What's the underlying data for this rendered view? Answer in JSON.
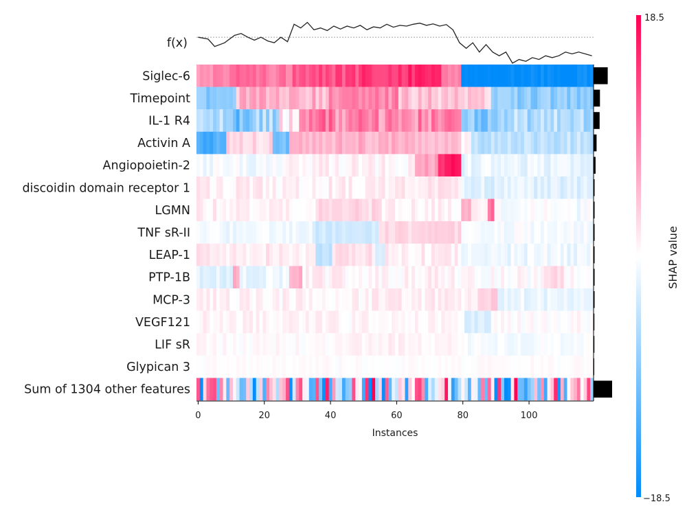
{
  "chart_data": {
    "type": "heatmap",
    "xlabel": "Instances",
    "fx_label": "f(x)",
    "n_instances": 120,
    "x_ticks": [
      0,
      20,
      40,
      60,
      80,
      100
    ],
    "features": [
      "Siglec-6",
      "Timepoint",
      "IL-1 R4",
      "Activin A",
      "Angiopoietin-2",
      "discoidin domain receptor 1",
      "LGMN",
      "TNF sR-II",
      "LEAP-1",
      "PTP-1B",
      "MCP-3",
      "VEGF121",
      "LIF sR",
      "Glypican 3",
      "Sum of 1304 other features"
    ],
    "importance": [
      4.2,
      1.9,
      1.8,
      0.9,
      0.6,
      0.3,
      0.3,
      0.3,
      0.3,
      0.3,
      0.3,
      0.25,
      0.25,
      0.2,
      5.5
    ],
    "profiles": [
      [
        [
          0,
          9,
          0.45
        ],
        [
          10,
          19,
          0.6
        ],
        [
          20,
          28,
          0.55
        ],
        [
          29,
          49,
          0.7
        ],
        [
          50,
          62,
          0.8
        ],
        [
          63,
          73,
          0.85
        ],
        [
          74,
          79,
          0.5
        ],
        [
          80,
          119,
          -1.0
        ]
      ],
      [
        [
          0,
          11,
          -0.45
        ],
        [
          12,
          39,
          0.3
        ],
        [
          40,
          60,
          0.45
        ],
        [
          61,
          79,
          0.25
        ],
        [
          80,
          88,
          0.15
        ],
        [
          89,
          119,
          -0.45
        ]
      ],
      [
        [
          0,
          8,
          -0.3
        ],
        [
          9,
          15,
          -0.55
        ],
        [
          16,
          24,
          -0.35
        ],
        [
          25,
          30,
          0.1
        ],
        [
          31,
          40,
          0.5
        ],
        [
          41,
          79,
          0.45
        ],
        [
          80,
          89,
          -0.45
        ],
        [
          90,
          119,
          -0.3
        ]
      ],
      [
        [
          0,
          8,
          -0.7
        ],
        [
          9,
          22,
          0.15
        ],
        [
          23,
          27,
          -0.55
        ],
        [
          28,
          79,
          0.3
        ],
        [
          80,
          82,
          0.0
        ],
        [
          83,
          119,
          -0.25
        ]
      ],
      [
        [
          0,
          25,
          -0.05
        ],
        [
          26,
          65,
          0.05
        ],
        [
          66,
          72,
          0.35
        ],
        [
          73,
          75,
          0.85
        ],
        [
          76,
          79,
          0.9
        ],
        [
          80,
          119,
          -0.08
        ]
      ],
      [
        [
          0,
          60,
          0.06
        ],
        [
          61,
          79,
          0.1
        ],
        [
          80,
          119,
          -0.12
        ]
      ],
      [
        [
          0,
          35,
          0.06
        ],
        [
          36,
          55,
          0.15
        ],
        [
          56,
          79,
          0.05
        ],
        [
          80,
          82,
          0.35
        ],
        [
          83,
          87,
          0.1
        ],
        [
          88,
          89,
          0.55
        ],
        [
          90,
          119,
          -0.03
        ]
      ],
      [
        [
          0,
          34,
          -0.06
        ],
        [
          35,
          54,
          -0.18
        ],
        [
          55,
          79,
          0.15
        ],
        [
          80,
          119,
          -0.03
        ]
      ],
      [
        [
          0,
          35,
          0.08
        ],
        [
          36,
          40,
          -0.25
        ],
        [
          41,
          53,
          0.12
        ],
        [
          54,
          56,
          -0.2
        ],
        [
          57,
          79,
          0.06
        ],
        [
          80,
          119,
          -0.06
        ]
      ],
      [
        [
          0,
          10,
          -0.1
        ],
        [
          11,
          12,
          0.35
        ],
        [
          13,
          27,
          -0.08
        ],
        [
          28,
          31,
          0.3
        ],
        [
          32,
          79,
          0.05
        ],
        [
          80,
          104,
          0.02
        ],
        [
          105,
          110,
          0.15
        ],
        [
          111,
          119,
          0.02
        ]
      ],
      [
        [
          0,
          50,
          0.05
        ],
        [
          51,
          84,
          0.06
        ],
        [
          85,
          90,
          0.2
        ],
        [
          91,
          119,
          -0.08
        ]
      ],
      [
        [
          0,
          80,
          0.04
        ],
        [
          81,
          88,
          -0.15
        ],
        [
          89,
          119,
          0.01
        ]
      ],
      [
        [
          0,
          40,
          0.02
        ],
        [
          41,
          79,
          0.05
        ],
        [
          80,
          119,
          -0.03
        ]
      ],
      [
        [
          0,
          119,
          0.01
        ]
      ],
      [
        [
          0,
          119,
          0.0
        ]
      ]
    ],
    "row_noise": [
      0.12,
      0.15,
      0.2,
      0.1,
      0.08,
      0.08,
      0.08,
      0.06,
      0.08,
      0.08,
      0.07,
      0.06,
      0.05,
      0.03,
      1.0
    ],
    "fx_points": [
      [
        0,
        0.7
      ],
      [
        3,
        0.65
      ],
      [
        5,
        0.45
      ],
      [
        8,
        0.55
      ],
      [
        11,
        0.75
      ],
      [
        13,
        0.8
      ],
      [
        15,
        0.7
      ],
      [
        17,
        0.62
      ],
      [
        19,
        0.7
      ],
      [
        21,
        0.6
      ],
      [
        23,
        0.55
      ],
      [
        25,
        0.7
      ],
      [
        27,
        0.58
      ],
      [
        29,
        1.05
      ],
      [
        31,
        0.95
      ],
      [
        33,
        1.1
      ],
      [
        35,
        0.9
      ],
      [
        37,
        0.95
      ],
      [
        39,
        0.88
      ],
      [
        41,
        1.0
      ],
      [
        43,
        0.92
      ],
      [
        45,
        1.0
      ],
      [
        47,
        0.95
      ],
      [
        49,
        1.02
      ],
      [
        51,
        0.9
      ],
      [
        53,
        0.98
      ],
      [
        55,
        0.95
      ],
      [
        57,
        1.05
      ],
      [
        59,
        0.97
      ],
      [
        61,
        1.02
      ],
      [
        63,
        1.0
      ],
      [
        65,
        1.05
      ],
      [
        67,
        1.08
      ],
      [
        69,
        1.02
      ],
      [
        71,
        1.06
      ],
      [
        73,
        1.0
      ],
      [
        75,
        1.04
      ],
      [
        77,
        0.9
      ],
      [
        79,
        0.55
      ],
      [
        81,
        0.4
      ],
      [
        83,
        0.55
      ],
      [
        85,
        0.3
      ],
      [
        87,
        0.5
      ],
      [
        89,
        0.3
      ],
      [
        91,
        0.2
      ],
      [
        93,
        0.3
      ],
      [
        95,
        0.0
      ],
      [
        97,
        0.1
      ],
      [
        99,
        0.05
      ],
      [
        101,
        0.15
      ],
      [
        103,
        0.1
      ],
      [
        105,
        0.2
      ],
      [
        107,
        0.15
      ],
      [
        109,
        0.2
      ],
      [
        111,
        0.3
      ],
      [
        113,
        0.25
      ],
      [
        115,
        0.3
      ],
      [
        117,
        0.25
      ],
      [
        119,
        0.2
      ]
    ],
    "fx_baseline": 0.7,
    "colorbar": {
      "min": -18.5,
      "max": 18.5,
      "label": "SHAP value",
      "min_label": "−18.5",
      "max_label": "18.5"
    },
    "colors": {
      "positive": "#ff0052",
      "negative": "#008bfb",
      "axis": "#000000",
      "bar": "#000000"
    }
  }
}
